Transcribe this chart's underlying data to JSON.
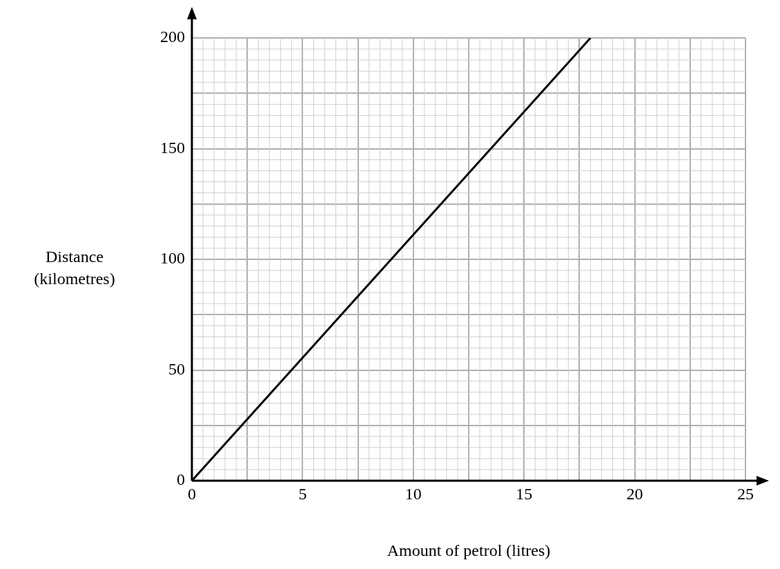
{
  "chart_data": {
    "type": "line",
    "xlabel": "Amount of petrol (litres)",
    "ylabel": "Distance (kilometres)",
    "x": [
      0,
      18
    ],
    "values": [
      0,
      200
    ],
    "color": "#000000",
    "marker": "none",
    "line_style": "solid",
    "xlim": [
      0,
      25
    ],
    "ylim": [
      0,
      200
    ],
    "xticks": [
      0,
      {
        "value": 2.5,
        "label": null
      },
      5,
      {
        "value": 7.5,
        "label": null
      },
      10,
      {
        "value": 12.5,
        "label": null
      },
      15,
      {
        "value": 17.5,
        "label": null
      },
      20,
      {
        "value": 22.5,
        "label": null
      },
      25
    ],
    "yticks": [
      0,
      {
        "value": 25,
        "label": null
      },
      50,
      {
        "value": 75,
        "label": null
      },
      100,
      {
        "value": 125,
        "label": null
      },
      150,
      {
        "value": 175,
        "label": null
      },
      200
    ],
    "grid": true
  }
}
